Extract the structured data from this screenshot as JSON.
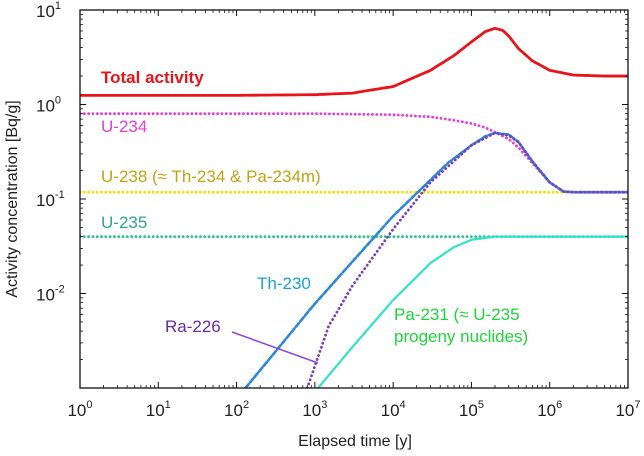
{
  "chart_data": {
    "type": "line",
    "title": "",
    "xlabel": "Elapsed time [y]",
    "ylabel": "Activity concentration [Bq/g]",
    "xscale": "log",
    "yscale": "log",
    "xlim": [
      1,
      10000000
    ],
    "ylim": [
      0.001,
      10
    ],
    "x_ticks": [
      {
        "base": "10",
        "exp": "0"
      },
      {
        "base": "10",
        "exp": "1"
      },
      {
        "base": "10",
        "exp": "2"
      },
      {
        "base": "10",
        "exp": "3"
      },
      {
        "base": "10",
        "exp": "4"
      },
      {
        "base": "10",
        "exp": "5"
      },
      {
        "base": "10",
        "exp": "6"
      },
      {
        "base": "10",
        "exp": "7"
      }
    ],
    "y_ticks": [
      {
        "value": 10,
        "base": "10",
        "exp": "1"
      },
      {
        "value": 1,
        "base": "10",
        "exp": "0"
      },
      {
        "value": 0.1,
        "base": "10",
        "exp": "-1"
      },
      {
        "value": 0.01,
        "base": "10",
        "exp": "-2"
      }
    ],
    "series": [
      {
        "name": "Total activity",
        "color": "#e8141b",
        "style": "solid",
        "x": [
          1,
          10,
          100,
          1000,
          3000,
          10000,
          30000,
          60000,
          100000,
          150000,
          200000,
          250000,
          300000,
          400000,
          600000,
          1000000,
          2000000,
          5000000,
          10000000
        ],
        "y": [
          1.25,
          1.25,
          1.25,
          1.27,
          1.32,
          1.55,
          2.3,
          3.3,
          4.6,
          5.9,
          6.4,
          6.1,
          5.3,
          3.9,
          2.9,
          2.3,
          2.05,
          2.0,
          2.0
        ]
      },
      {
        "name": "U-234",
        "color": "#e43fd5",
        "style": "dotted",
        "x": [
          1,
          100,
          1000,
          10000,
          30000,
          60000,
          100000,
          150000,
          200000,
          300000,
          400000,
          600000,
          1000000,
          1500000,
          2000000,
          3000000,
          10000000
        ],
        "y": [
          0.8,
          0.8,
          0.8,
          0.78,
          0.74,
          0.68,
          0.63,
          0.57,
          0.51,
          0.43,
          0.35,
          0.24,
          0.15,
          0.12,
          0.118,
          0.118,
          0.118
        ]
      },
      {
        "name": "U-238 (≈ Th-234 & Pa-234m)",
        "color": "#efe20a",
        "style": "dotted",
        "x": [
          1,
          10000000
        ],
        "y": [
          0.118,
          0.118
        ]
      },
      {
        "name": "U-235",
        "color": "#2cc489",
        "style": "dotted",
        "x": [
          1,
          10000000
        ],
        "y": [
          0.04,
          0.04
        ]
      },
      {
        "name": "Th-230",
        "color": "#2e86d6",
        "style": "dashed",
        "x": [
          130,
          1000,
          10000,
          50000,
          100000,
          150000,
          200000,
          300000,
          400000,
          600000,
          1000000,
          1500000,
          2000000,
          10000000
        ],
        "y": [
          0.001,
          0.0078,
          0.066,
          0.24,
          0.37,
          0.46,
          0.5,
          0.48,
          0.4,
          0.25,
          0.15,
          0.12,
          0.118,
          0.118
        ]
      },
      {
        "name": "Ra-226",
        "color": "#7a3eb8",
        "style": "dotted",
        "x": [
          800,
          1500,
          3000,
          10000,
          30000,
          100000,
          200000,
          300000,
          400000,
          600000,
          1000000,
          1500000,
          2000000,
          10000000
        ],
        "y": [
          0.001,
          0.0045,
          0.012,
          0.048,
          0.15,
          0.37,
          0.5,
          0.47,
          0.4,
          0.25,
          0.15,
          0.12,
          0.118,
          0.118
        ]
      },
      {
        "name": "Pa-231 (≈ U-235 progeny nuclides)",
        "color": "#33e2c6",
        "style": "solid",
        "x": [
          1100,
          3000,
          10000,
          30000,
          60000,
          100000,
          200000,
          1000000,
          10000000
        ],
        "y": [
          0.001,
          0.0027,
          0.0085,
          0.021,
          0.031,
          0.037,
          0.04,
          0.04,
          0.04
        ]
      }
    ],
    "annotations": [
      {
        "name": "total-activity-label",
        "text": "Total activity",
        "color": "#e8141b"
      },
      {
        "name": "u234-label",
        "text": "U-234",
        "color": "#e43fd5"
      },
      {
        "name": "u238-label",
        "text": "U-238 (≈ Th-234 & Pa-234m)",
        "color": "#c0a414"
      },
      {
        "name": "u235-label",
        "text": "U-235",
        "color": "#2ea88a"
      },
      {
        "name": "th230-label",
        "text": "Th-230",
        "color": "#1aa0dc"
      },
      {
        "name": "ra226-label",
        "text": "Ra-226",
        "color": "#6a2c9e"
      },
      {
        "name": "pa231-label-line1",
        "text": "Pa-231 (≈ U-235",
        "color": "#1fd43a"
      },
      {
        "name": "pa231-label-line2",
        "text": "progeny nuclides)",
        "color": "#1fd43a"
      }
    ]
  }
}
